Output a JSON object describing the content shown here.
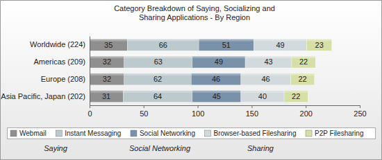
{
  "chart_data": {
    "type": "bar",
    "orientation": "horizontal",
    "stacked": true,
    "data_labels": true,
    "grid": false,
    "legend": "bottom",
    "title": "Category Breakdown of Saying, Socializing and Sharing Applications - By Region",
    "categories": [
      "Worldwide (224)",
      "Americas (209)",
      "Europe (208)",
      "Asia Pacific, Japan (202)"
    ],
    "series": [
      {
        "name": "Webmail",
        "color": "#8f8f8f",
        "values": [
          35,
          32,
          32,
          31
        ]
      },
      {
        "name": "Instant Messaging",
        "color": "#bccacd",
        "values": [
          66,
          63,
          62,
          64
        ]
      },
      {
        "name": "Social Networking",
        "color": "#7a91aa",
        "values": [
          51,
          49,
          46,
          45
        ]
      },
      {
        "name": "Browser-based Filesharing",
        "color": "#d2dadd",
        "values": [
          49,
          43,
          46,
          40
        ]
      },
      {
        "name": "P2P Filesharing",
        "color": "#d6e0a6",
        "values": [
          23,
          22,
          22,
          22
        ]
      }
    ],
    "xlim": [
      0,
      250
    ],
    "xticks": [
      0,
      50,
      100,
      150,
      200,
      250
    ],
    "annotations": [
      "Saying",
      "Social Networking",
      "Sharing"
    ]
  }
}
